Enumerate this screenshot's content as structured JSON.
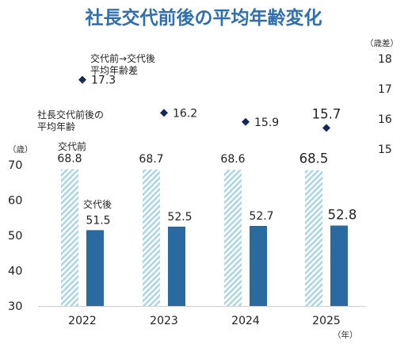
{
  "chart_data": {
    "type": "bar",
    "title": "社長交代前後の平均年齢変化",
    "categories": [
      "2022",
      "2023",
      "2024",
      "2025"
    ],
    "series": [
      {
        "name": "交代前",
        "values": [
          68.8,
          68.7,
          68.6,
          68.5
        ],
        "color": "#a9d4e3",
        "pattern": "diagonal-stripes"
      },
      {
        "name": "交代後",
        "values": [
          51.5,
          52.5,
          52.7,
          52.8
        ],
        "color": "#2b6aa0"
      },
      {
        "name": "交代前→交代後 平均年齢差",
        "type": "scatter",
        "axis": "right",
        "values": [
          17.3,
          16.2,
          15.9,
          15.7
        ],
        "color": "#17275a",
        "marker": "diamond"
      }
    ],
    "y_left": {
      "unit": "（歳）",
      "ticks": [
        "30",
        "40",
        "50",
        "60",
        "70"
      ],
      "range": [
        30,
        70
      ]
    },
    "y_right": {
      "unit": "（歳差）",
      "ticks": [
        "15",
        "16",
        "17",
        "18"
      ],
      "range": [
        15,
        18
      ]
    },
    "x_unit": "（年）",
    "annotations": {
      "avg_age_line1": "社長交代前後の",
      "avg_age_line2": "平均年齢",
      "diff_line1": "交代前→交代後",
      "diff_line2": "平均年齢差",
      "before_label": "交代前",
      "after_label": "交代後"
    }
  }
}
